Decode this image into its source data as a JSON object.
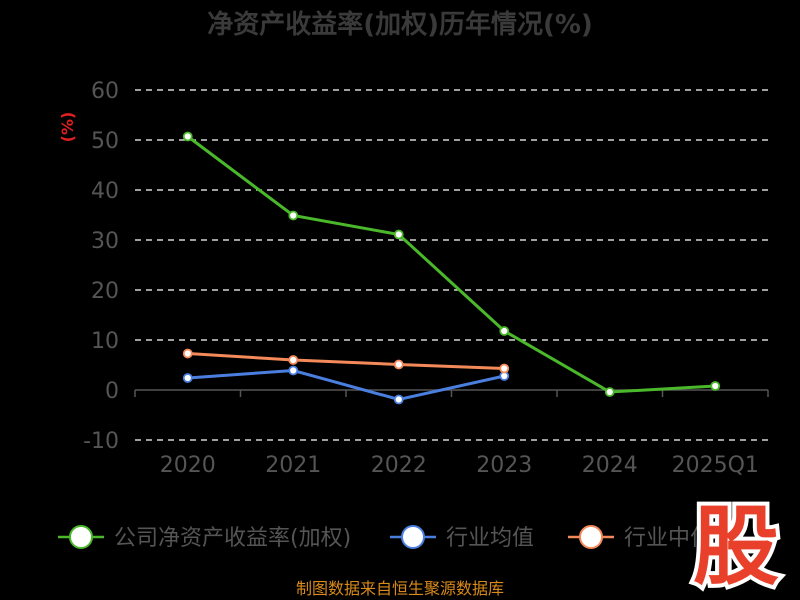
{
  "chart_data": {
    "type": "line",
    "title": "净资产收益率(加权)历年情况(%)",
    "ylabel": "(%)",
    "categories": [
      "2020",
      "2021",
      "2022",
      "2023",
      "2024",
      "2025Q1"
    ],
    "ylim": [
      -10,
      60
    ],
    "yticks": [
      -10,
      0,
      10,
      20,
      30,
      40,
      50,
      60
    ],
    "grid": true,
    "legend_position": "bottom",
    "series": [
      {
        "name": "公司净资产收益率(加权)",
        "color": "#4ab82a",
        "values": [
          50.7,
          34.9,
          31.1,
          11.8,
          -0.4,
          0.8
        ]
      },
      {
        "name": "行业均值",
        "color": "#4a7fe0",
        "values": [
          2.4,
          3.9,
          -1.9,
          2.8,
          null,
          null
        ]
      },
      {
        "name": "行业中位数",
        "color": "#f4895a",
        "values": [
          7.3,
          6.0,
          5.1,
          4.3,
          null,
          null
        ]
      }
    ]
  },
  "source": "制图数据来自恒生聚源数据库",
  "watermark": "股"
}
